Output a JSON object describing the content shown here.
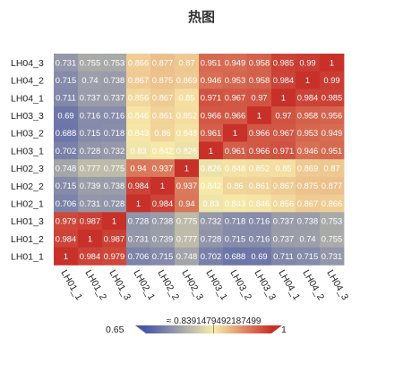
{
  "title": "热图",
  "chart_data": {
    "type": "heatmap",
    "title": "热图",
    "columns": [
      "LH01_1",
      "LH01_2",
      "LH01_3",
      "LH02_1",
      "LH02_2",
      "LH02_3",
      "LH03_1",
      "LH03_2",
      "LH03_3",
      "LH04_1",
      "LH04_2",
      "LH04_3"
    ],
    "rows": [
      "LH04_3",
      "LH04_2",
      "LH04_1",
      "LH03_3",
      "LH03_2",
      "LH03_1",
      "LH02_3",
      "LH02_2",
      "LH02_1",
      "LH01_3",
      "LH01_2",
      "LH01_1"
    ],
    "values": [
      [
        "0.731",
        "0.755",
        "0.753",
        "0.866",
        "0.877",
        "0.87",
        "0.951",
        "0.949",
        "0.958",
        "0.985",
        "0.99",
        "1"
      ],
      [
        "0.715",
        "0.74",
        "0.738",
        "0.867",
        "0.875",
        "0.869",
        "0.946",
        "0.953",
        "0.958",
        "0.984",
        "1",
        "0.99"
      ],
      [
        "0.711",
        "0.737",
        "0.737",
        "0.856",
        "0.867",
        "0.85",
        "0.971",
        "0.967",
        "0.97",
        "1",
        "0.984",
        "0.985"
      ],
      [
        "0.69",
        "0.716",
        "0.716",
        "0.846",
        "0.861",
        "0.852",
        "0.966",
        "0.966",
        "1",
        "0.97",
        "0.958",
        "0.956"
      ],
      [
        "0.688",
        "0.715",
        "0.718",
        "0.843",
        "0.86",
        "0.848",
        "0.961",
        "1",
        "0.966",
        "0.967",
        "0.953",
        "0.949"
      ],
      [
        "0.702",
        "0.728",
        "0.732",
        "0.83",
        "0.842",
        "0.826",
        "1",
        "0.961",
        "0.966",
        "0.971",
        "0.946",
        "0.951"
      ],
      [
        "0.748",
        "0.777",
        "0.775",
        "0.94",
        "0.937",
        "1",
        "0.826",
        "0.848",
        "0.852",
        "0.85",
        "0.869",
        "0.87"
      ],
      [
        "0.715",
        "0.739",
        "0.738",
        "0.984",
        "1",
        "0.937",
        "0.842",
        "0.86",
        "0.861",
        "0.867",
        "0.875",
        "0.877"
      ],
      [
        "0.706",
        "0.731",
        "0.728",
        "1",
        "0.984",
        "0.94",
        "0.83",
        "0.843",
        "0.846",
        "0.856",
        "0.867",
        "0.866"
      ],
      [
        "0.979",
        "0.987",
        "1",
        "0.728",
        "0.738",
        "0.775",
        "0.732",
        "0.718",
        "0.716",
        "0.737",
        "0.738",
        "0.753"
      ],
      [
        "0.984",
        "1",
        "0.987",
        "0.731",
        "0.739",
        "0.777",
        "0.728",
        "0.715",
        "0.716",
        "0.737",
        "0.74",
        "0.755"
      ],
      [
        "1",
        "0.984",
        "0.979",
        "0.706",
        "0.715",
        "0.748",
        "0.702",
        "0.688",
        "0.69",
        "0.711",
        "0.715",
        "0.731"
      ]
    ],
    "color_scale": {
      "min": 0.65,
      "mid": 0.8391479492187499,
      "max": 1,
      "min_label": "0.65",
      "mid_label": "≈ 0.8391479492187499",
      "max_label": "1",
      "colors": {
        "low": "#4a58a8",
        "mid": "#f7ecaa",
        "high": "#c8302a"
      }
    }
  }
}
